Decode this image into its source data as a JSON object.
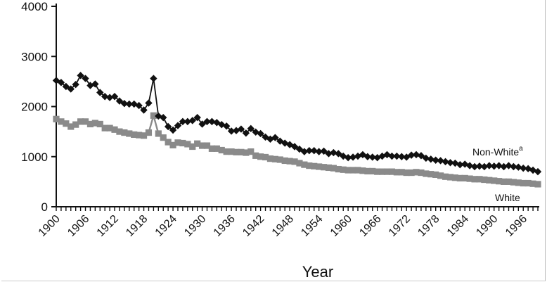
{
  "chart_data": {
    "type": "scatter",
    "title": "",
    "xlabel": "Year",
    "ylabel": "",
    "xlim": [
      1900,
      1999
    ],
    "ylim": [
      0,
      4000
    ],
    "yticks": [
      0,
      1000,
      2000,
      3000,
      4000
    ],
    "xticks": [
      1900,
      1906,
      1912,
      1918,
      1924,
      1930,
      1936,
      1942,
      1948,
      1954,
      1960,
      1966,
      1972,
      1978,
      1984,
      1990,
      1996
    ],
    "grid": false,
    "series": [
      {
        "name": "Non-White",
        "superscript": "a",
        "marker": "diamond",
        "color": "#111111",
        "x": [
          1900,
          1901,
          1902,
          1903,
          1904,
          1905,
          1906,
          1907,
          1908,
          1909,
          1910,
          1911,
          1912,
          1913,
          1914,
          1915,
          1916,
          1917,
          1918,
          1919,
          1920,
          1921,
          1922,
          1923,
          1924,
          1925,
          1926,
          1927,
          1928,
          1929,
          1930,
          1931,
          1932,
          1933,
          1934,
          1935,
          1936,
          1937,
          1938,
          1939,
          1940,
          1941,
          1942,
          1943,
          1944,
          1945,
          1946,
          1947,
          1948,
          1949,
          1950,
          1951,
          1952,
          1953,
          1954,
          1955,
          1956,
          1957,
          1958,
          1959,
          1960,
          1961,
          1962,
          1963,
          1964,
          1965,
          1966,
          1967,
          1968,
          1969,
          1970,
          1971,
          1972,
          1973,
          1974,
          1975,
          1976,
          1977,
          1978,
          1979,
          1980,
          1981,
          1982,
          1983,
          1984,
          1985,
          1986,
          1987,
          1988,
          1989,
          1990,
          1991,
          1992,
          1993,
          1994,
          1995,
          1996,
          1997,
          1998,
          1999
        ],
        "values": [
          2520,
          2480,
          2400,
          2350,
          2440,
          2620,
          2560,
          2420,
          2450,
          2280,
          2200,
          2180,
          2200,
          2110,
          2060,
          2050,
          2050,
          2020,
          1930,
          2070,
          2560,
          1810,
          1780,
          1600,
          1530,
          1620,
          1700,
          1700,
          1720,
          1780,
          1650,
          1700,
          1700,
          1680,
          1640,
          1610,
          1510,
          1520,
          1550,
          1470,
          1560,
          1490,
          1460,
          1390,
          1350,
          1380,
          1310,
          1270,
          1240,
          1200,
          1150,
          1100,
          1120,
          1120,
          1100,
          1110,
          1060,
          1080,
          1060,
          1010,
          980,
          990,
          1010,
          1040,
          1000,
          990,
          980,
          1010,
          1040,
          1010,
          1010,
          1000,
          990,
          1030,
          1040,
          1020,
          970,
          950,
          930,
          920,
          900,
          880,
          870,
          840,
          850,
          820,
          800,
          810,
          800,
          820,
          810,
          820,
          800,
          820,
          800,
          790,
          770,
          760,
          730,
          700
        ]
      },
      {
        "name": "White",
        "marker": "square",
        "color": "#8a8a8a",
        "x": [
          1900,
          1901,
          1902,
          1903,
          1904,
          1905,
          1906,
          1907,
          1908,
          1909,
          1910,
          1911,
          1912,
          1913,
          1914,
          1915,
          1916,
          1917,
          1918,
          1919,
          1920,
          1921,
          1922,
          1923,
          1924,
          1925,
          1926,
          1927,
          1928,
          1929,
          1930,
          1931,
          1932,
          1933,
          1934,
          1935,
          1936,
          1937,
          1938,
          1939,
          1940,
          1941,
          1942,
          1943,
          1944,
          1945,
          1946,
          1947,
          1948,
          1949,
          1950,
          1951,
          1952,
          1953,
          1954,
          1955,
          1956,
          1957,
          1958,
          1959,
          1960,
          1961,
          1962,
          1963,
          1964,
          1965,
          1966,
          1967,
          1968,
          1969,
          1970,
          1971,
          1972,
          1973,
          1974,
          1975,
          1976,
          1977,
          1978,
          1979,
          1980,
          1981,
          1982,
          1983,
          1984,
          1985,
          1986,
          1987,
          1988,
          1989,
          1990,
          1991,
          1992,
          1993,
          1994,
          1995,
          1996,
          1997,
          1998,
          1999
        ],
        "values": [
          1750,
          1700,
          1660,
          1600,
          1640,
          1700,
          1700,
          1650,
          1670,
          1650,
          1570,
          1570,
          1540,
          1500,
          1480,
          1460,
          1440,
          1430,
          1420,
          1480,
          1820,
          1460,
          1380,
          1290,
          1230,
          1280,
          1270,
          1250,
          1200,
          1260,
          1220,
          1220,
          1160,
          1160,
          1130,
          1100,
          1100,
          1090,
          1090,
          1080,
          1100,
          1020,
          1000,
          990,
          960,
          950,
          940,
          920,
          910,
          900,
          870,
          840,
          820,
          810,
          800,
          790,
          780,
          770,
          750,
          740,
          730,
          730,
          730,
          720,
          710,
          710,
          700,
          700,
          700,
          700,
          690,
          690,
          680,
          680,
          690,
          680,
          660,
          650,
          640,
          620,
          600,
          590,
          580,
          570,
          570,
          560,
          550,
          550,
          540,
          530,
          520,
          510,
          500,
          500,
          490,
          480,
          470,
          470,
          460,
          450
        ]
      }
    ]
  }
}
